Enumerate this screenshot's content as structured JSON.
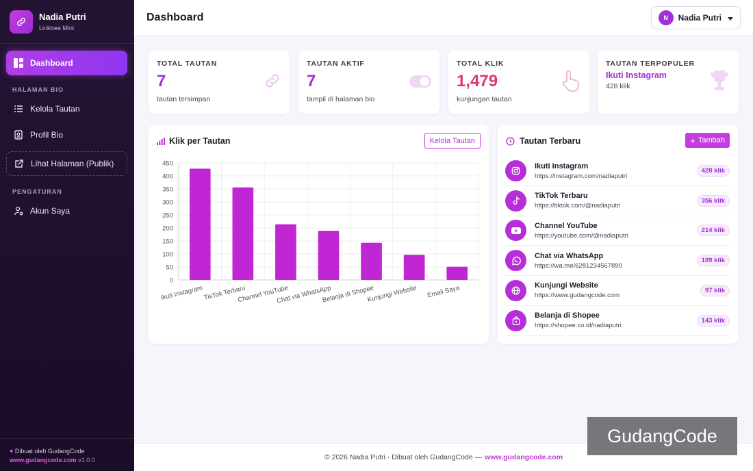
{
  "brand": {
    "name": "Nadia Putri",
    "subtitle": "Linktree Mini"
  },
  "sidebar": {
    "active": "Dashboard",
    "section_bio": "HALAMAN BIO",
    "section_settings": "PENGATURAN",
    "items": {
      "kelola": "Kelola Tautan",
      "profil": "Profil Bio",
      "lihat": "Lihat Halaman (Publik)",
      "akun": "Akun Saya"
    },
    "footer": {
      "made_by": "Dibuat oleh GudangCode",
      "link": "www.gudangcode.com",
      "version": "v1.0.0"
    }
  },
  "header": {
    "title": "Dashboard",
    "user_initial": "N",
    "user_name": "Nadia Putri"
  },
  "stats": {
    "total": {
      "label": "TOTAL TAUTAN",
      "value": "7",
      "sub": "tautan tersimpan"
    },
    "active": {
      "label": "TAUTAN AKTIF",
      "value": "7",
      "sub": "tampil di halaman bio"
    },
    "clicks": {
      "label": "TOTAL KLIK",
      "value": "1,479",
      "sub": "kunjungan tautan"
    },
    "popular": {
      "label": "TAUTAN TERPOPULER",
      "title": "Ikuti Instagram",
      "sub": "428 klik"
    }
  },
  "chart_card": {
    "title": "Klik per Tautan",
    "button": "Kelola Tautan"
  },
  "chart_data": {
    "type": "bar",
    "title": "Klik per Tautan",
    "categories": [
      "Ikuti Instagram",
      "TikTok Terbaru",
      "Channel YouTube",
      "Chat via WhatsApp",
      "Belanja di Shopee",
      "Kunjungi Website",
      "Email Saya"
    ],
    "values": [
      428,
      356,
      214,
      189,
      143,
      97,
      51
    ],
    "ylim": [
      0,
      450
    ],
    "yticks": [
      0,
      50,
      100,
      150,
      200,
      250,
      300,
      350,
      400,
      450
    ],
    "color": "#c026d3",
    "grid": true,
    "xlabel": "",
    "ylabel": ""
  },
  "recent": {
    "title": "Tautan Terbaru",
    "add_button": "Tambah",
    "items": [
      {
        "name": "Ikuti Instagram",
        "url": "https://instagram.com/nadiaputri",
        "clicks": "428 klik",
        "icon": "instagram-icon"
      },
      {
        "name": "TikTok Terbaru",
        "url": "https://tiktok.com/@nadiaputri",
        "clicks": "356 klik",
        "icon": "tiktok-icon"
      },
      {
        "name": "Channel YouTube",
        "url": "https://youtube.com/@nadiaputri",
        "clicks": "214 klik",
        "icon": "youtube-icon"
      },
      {
        "name": "Chat via WhatsApp",
        "url": "https://wa.me/6281234567890",
        "clicks": "189 klik",
        "icon": "whatsapp-icon"
      },
      {
        "name": "Kunjungi Website",
        "url": "https://www.gudangcode.com",
        "clicks": "97 klik",
        "icon": "globe-icon"
      },
      {
        "name": "Belanja di Shopee",
        "url": "https://shopee.co.id/nadiaputri",
        "clicks": "143 klik",
        "icon": "shopping-bag-icon"
      }
    ]
  },
  "footer": {
    "text": "© 2026 Nadia Putri · Dibuat oleh GudangCode —",
    "link": "www.gudangcode.com"
  },
  "watermark": "GudangCode",
  "colors": {
    "accent": "#c026d3",
    "sidebar": "#1f1030",
    "clicks_value": "#e0357a"
  }
}
